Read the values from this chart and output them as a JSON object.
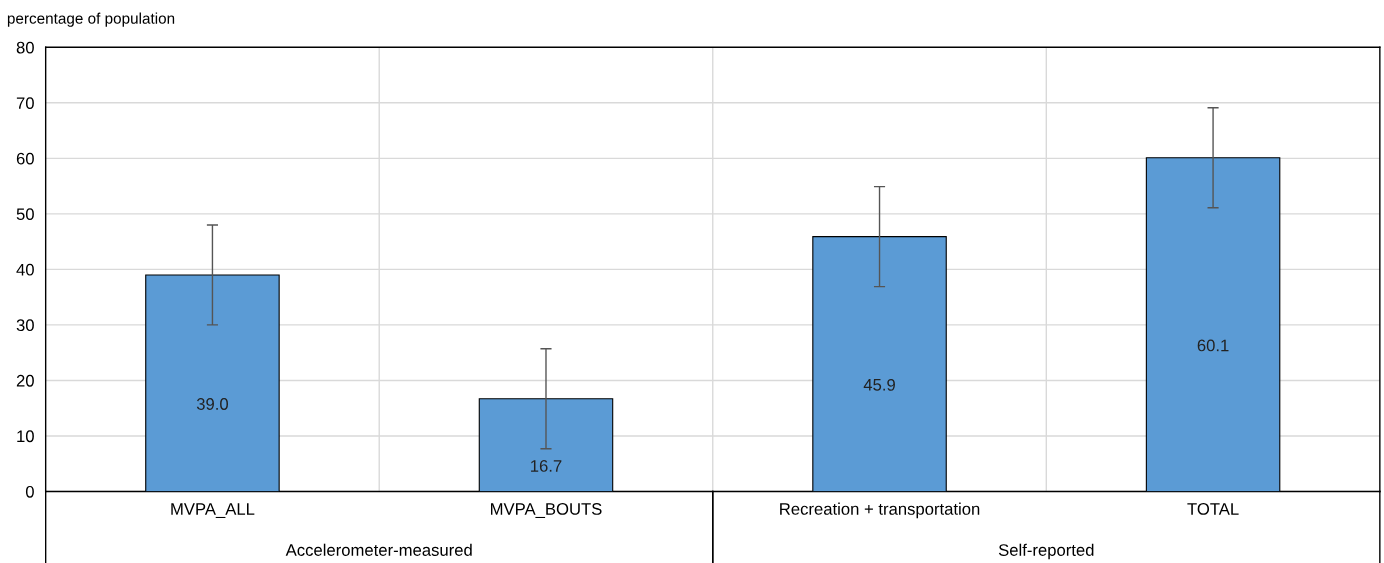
{
  "chart_data": {
    "type": "bar",
    "ylabel": "percentage of population",
    "categories": [
      "MVPA_ALL",
      "MVPA_BOUTS",
      "Recreation + transportation",
      "TOTAL"
    ],
    "values": [
      39.0,
      16.7,
      45.9,
      60.1
    ],
    "value_labels": [
      "39.0",
      "16.7",
      "45.9",
      "60.1"
    ],
    "errors": [
      9,
      9,
      9,
      9
    ],
    "color": "#5b9bd5",
    "ylim": [
      0,
      80
    ],
    "yticks": [
      0,
      10,
      20,
      30,
      40,
      50,
      60,
      70,
      80
    ],
    "grid": true,
    "annotations": [
      "Accelerometer-measured",
      "Self-reported"
    ]
  }
}
